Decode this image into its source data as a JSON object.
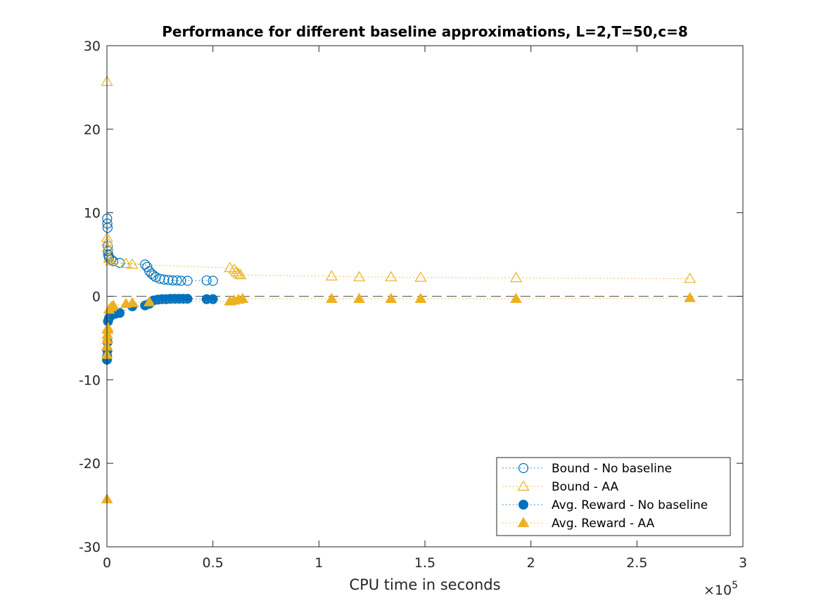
{
  "chart_data": {
    "type": "scatter",
    "title": "Performance for different baseline approximations, L=2,T=50,c=8",
    "xlabel": "CPU time in seconds",
    "ylabel": "",
    "x_exponent_label": "×10",
    "x_exponent_power": "5",
    "xlim": [
      0,
      3
    ],
    "ylim": [
      -30,
      30
    ],
    "x_ticks": [
      0,
      0.5,
      1,
      1.5,
      2,
      2.5,
      3
    ],
    "x_tick_labels": [
      "0",
      "0.5",
      "1",
      "1.5",
      "2",
      "2.5",
      "3"
    ],
    "y_ticks": [
      -30,
      -20,
      -10,
      0,
      10,
      20,
      30
    ],
    "y_tick_labels": [
      "-30",
      "-20",
      "-10",
      "0",
      "10",
      "20",
      "30"
    ],
    "reference_line_y": 0,
    "legend_position": "bottom-right",
    "colors": {
      "blue": "#0072BD",
      "orange": "#EDB120",
      "axis": "#262626",
      "refline": "#555555"
    },
    "series": [
      {
        "name": "Bound - No baseline",
        "color": "#0072BD",
        "marker": "circle-open",
        "x": [
          0.001,
          0.002,
          0.003,
          0.004,
          0.005,
          0.006,
          0.008,
          0.01,
          0.02,
          0.03,
          0.06,
          0.18,
          0.19,
          0.2,
          0.21,
          0.22,
          0.23,
          0.25,
          0.27,
          0.29,
          0.31,
          0.33,
          0.35,
          0.38,
          0.47,
          0.5
        ],
        "y": [
          9.3,
          8.7,
          8.2,
          6.0,
          5.4,
          5.0,
          4.8,
          4.6,
          4.4,
          4.2,
          4.0,
          3.8,
          3.5,
          3.0,
          2.7,
          2.5,
          2.3,
          2.1,
          2.0,
          1.95,
          1.9,
          1.9,
          1.85,
          1.85,
          1.9,
          1.85
        ]
      },
      {
        "name": "Bound - AA",
        "color": "#EDB120",
        "marker": "triangle-open",
        "x": [
          0.0,
          0.001,
          0.002,
          0.003,
          0.01,
          0.02,
          0.09,
          0.12,
          0.58,
          0.6,
          0.61,
          0.62,
          0.63,
          1.06,
          1.19,
          1.34,
          1.48,
          1.93,
          2.75
        ],
        "y": [
          25.7,
          7.0,
          6.5,
          5.8,
          4.5,
          4.2,
          3.9,
          3.8,
          3.4,
          3.2,
          2.9,
          2.7,
          2.55,
          2.4,
          2.3,
          2.3,
          2.25,
          2.2,
          2.1
        ]
      },
      {
        "name": "Avg. Reward - No baseline",
        "color": "#0072BD",
        "marker": "circle-filled",
        "x": [
          0.0,
          0.001,
          0.002,
          0.003,
          0.005,
          0.01,
          0.02,
          0.04,
          0.06,
          0.12,
          0.18,
          0.2,
          0.22,
          0.24,
          0.26,
          0.28,
          0.3,
          0.32,
          0.34,
          0.36,
          0.38,
          0.47,
          0.5
        ],
        "y": [
          -7.6,
          -7.2,
          -6.5,
          -5.5,
          -3.0,
          -2.6,
          -2.3,
          -2.1,
          -2.0,
          -1.2,
          -1.1,
          -0.9,
          -0.5,
          -0.4,
          -0.35,
          -0.35,
          -0.3,
          -0.3,
          -0.3,
          -0.3,
          -0.3,
          -0.35,
          -0.35
        ]
      },
      {
        "name": "Avg. Reward - AA",
        "color": "#EDB120",
        "marker": "triangle-filled",
        "x": [
          0.0,
          0.0,
          0.0,
          0.001,
          0.002,
          0.003,
          0.005,
          0.01,
          0.02,
          0.03,
          0.09,
          0.12,
          0.2,
          0.58,
          0.6,
          0.62,
          0.64,
          1.06,
          1.19,
          1.34,
          1.48,
          1.93,
          2.75
        ],
        "y": [
          -24.3,
          -7.0,
          -6.0,
          -5.2,
          -4.6,
          -4.0,
          -3.8,
          -1.6,
          -1.3,
          -1.1,
          -0.9,
          -0.8,
          -0.7,
          -0.6,
          -0.5,
          -0.4,
          -0.3,
          -0.3,
          -0.3,
          -0.3,
          -0.3,
          -0.3,
          -0.2
        ]
      }
    ]
  }
}
